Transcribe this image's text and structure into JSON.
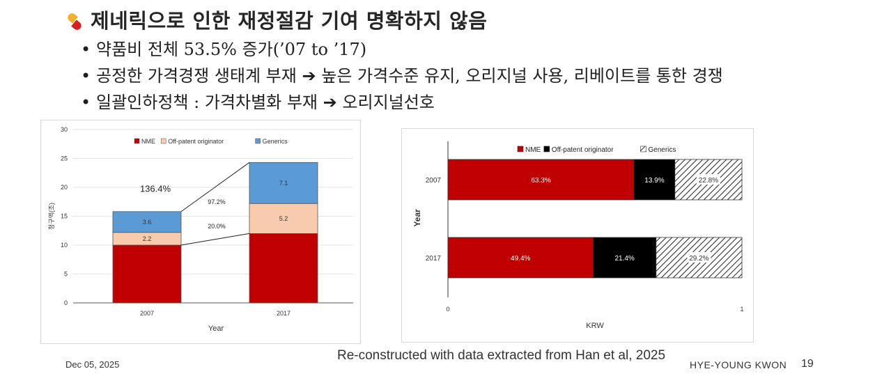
{
  "slide": {
    "title": "제네릭으로 인한 재정절감 기여 명확하지 않음",
    "bullets": [
      {
        "text": "약품비 전체 53.5% 증가(’07 to ’17)"
      },
      {
        "before": "공정한 가격경쟁 생태계 부재",
        "after": "높은 가격수준 유지, 오리지널 사용, 리베이트를 통한 경쟁"
      },
      {
        "before": "일괄인하정책 : 가격차별화 부재",
        "after": "오리지널선호"
      }
    ],
    "arrow_glyph": "➔",
    "icon": "pill-icon"
  },
  "footer": {
    "date": "Dec 05, 2025",
    "source": "Re-constructed with data extracted from Han et al, 2025",
    "author": "HYE-YOUNG KWON",
    "page": "19"
  },
  "chart_data": [
    {
      "type": "bar",
      "stacked": true,
      "categories": [
        "2007",
        "2017"
      ],
      "series": [
        {
          "name": "NME",
          "values": [
            10.0,
            12.0
          ],
          "color": "#c00000",
          "labels": [
            "",
            ""
          ]
        },
        {
          "name": "Off-patent originator",
          "values": [
            2.2,
            5.2
          ],
          "color": "#f8cbad",
          "labels": [
            "2.2",
            "5.2"
          ]
        },
        {
          "name": "Generics",
          "values": [
            3.6,
            7.1
          ],
          "color": "#5b9bd5",
          "labels": [
            "3.6",
            "7.1"
          ]
        }
      ],
      "xlabel": "Year",
      "ylabel": "청구액(조)",
      "ylim": [
        0,
        30
      ],
      "yticks": [
        "0",
        "5",
        "10",
        "15",
        "20",
        "25",
        "30"
      ],
      "legend": "top",
      "annotations": [
        "136.4%",
        "97.2%",
        "20.0%"
      ]
    },
    {
      "type": "bar",
      "orientation": "horizontal",
      "stacked": true,
      "categories": [
        "2007",
        "2017"
      ],
      "series": [
        {
          "name": "NME",
          "values": [
            0.633,
            0.494
          ],
          "color": "#c00000",
          "labels": [
            "63.3%",
            "49.4%"
          ]
        },
        {
          "name": "Off-patent originator",
          "values": [
            0.139,
            0.214
          ],
          "color": "#000000",
          "labels": [
            "13.9%",
            "21.4%"
          ]
        },
        {
          "name": "Generics",
          "values": [
            0.228,
            0.292
          ],
          "color": "hatched",
          "labels": [
            "22.8%",
            "29.2%"
          ]
        }
      ],
      "xlabel": "KRW",
      "ylabel": "Year",
      "xlim": [
        0,
        1
      ],
      "xticks": [
        "0",
        "1"
      ],
      "legend": "top"
    }
  ]
}
